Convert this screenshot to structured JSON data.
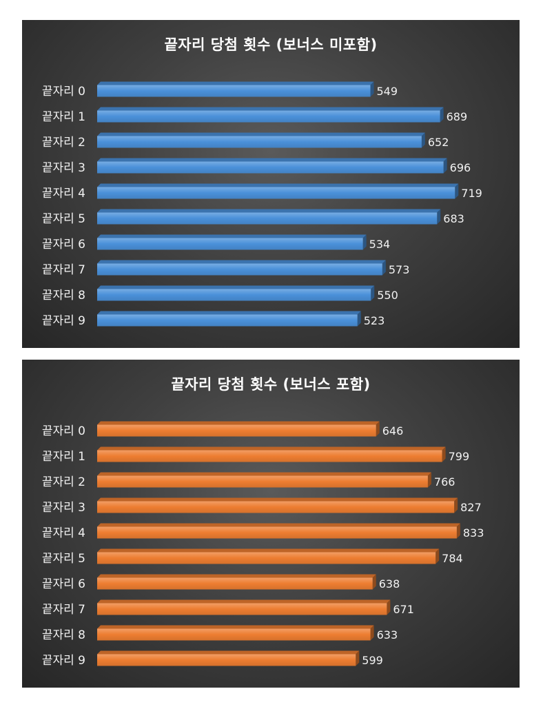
{
  "chart_data": [
    {
      "type": "bar",
      "orientation": "horizontal",
      "style": "3d",
      "title": "끝자리 당첨 횟수 (보너스 미포함)",
      "categories": [
        "끝자리 0",
        "끝자리 1",
        "끝자리 2",
        "끝자리 3",
        "끝자리 4",
        "끝자리 5",
        "끝자리 6",
        "끝자리 7",
        "끝자리 8",
        "끝자리 9"
      ],
      "values": [
        549,
        689,
        652,
        696,
        719,
        683,
        534,
        573,
        550,
        523
      ],
      "color": "#4a90d9",
      "data_labels": true,
      "grid": false,
      "legend": "none",
      "xlim": [
        0,
        720
      ]
    },
    {
      "type": "bar",
      "orientation": "horizontal",
      "style": "3d",
      "title": "끝자리 당첨 횟수 (보너스 포함)",
      "categories": [
        "끝자리 0",
        "끝자리 1",
        "끝자리 2",
        "끝자리 3",
        "끝자리 4",
        "끝자리 5",
        "끝자리 6",
        "끝자리 7",
        "끝자리 8",
        "끝자리 9"
      ],
      "values": [
        646,
        799,
        766,
        827,
        833,
        784,
        638,
        671,
        633,
        599
      ],
      "color": "#ed7d31",
      "data_labels": true,
      "grid": false,
      "legend": "none",
      "xlim": [
        0,
        830
      ]
    }
  ]
}
